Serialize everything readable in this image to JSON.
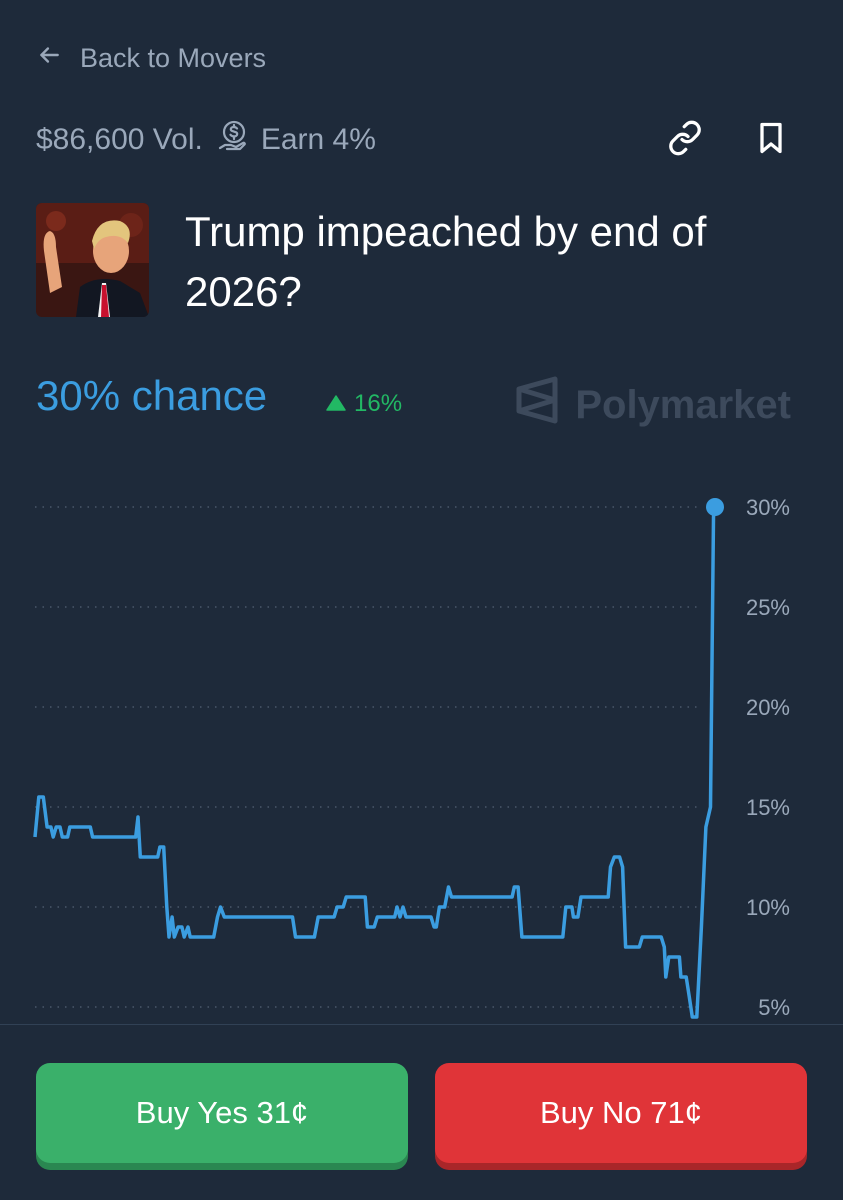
{
  "nav": {
    "back_label": "Back to Movers"
  },
  "market": {
    "volume": "$86,600 Vol.",
    "earn": "Earn 4%",
    "title": "Trump impeached by end of 2026?",
    "chance": "30% chance",
    "change": "16%",
    "brand": "Polymarket"
  },
  "icons": {
    "back": "arrow-left-icon",
    "earn": "coin-hand-icon",
    "link": "link-icon",
    "bookmark": "bookmark-icon",
    "change": "triangle-up-icon",
    "brand": "polymarket-logo-icon"
  },
  "colors": {
    "background": "#1e2a3a",
    "accent": "#3b9de0",
    "up": "#22b864",
    "yes": "#3ab06a",
    "no": "#e03438"
  },
  "actions": {
    "buy_yes": "Buy Yes 31¢",
    "buy_no": "Buy No 71¢"
  },
  "chart_data": {
    "type": "line",
    "yticks": [
      "30%",
      "25%",
      "20%",
      "15%",
      "10%",
      "5%"
    ],
    "ylim": [
      4.5,
      31
    ],
    "xlim": [
      0,
      100
    ],
    "grid": true,
    "series": [
      {
        "values": [
          [
            0,
            13.5
          ],
          [
            0.5,
            15.5
          ],
          [
            1.1,
            15.5
          ],
          [
            1.6,
            14
          ],
          [
            2.1,
            14
          ],
          [
            2.4,
            13.5
          ],
          [
            2.8,
            14
          ],
          [
            3.3,
            14
          ],
          [
            3.6,
            13.5
          ],
          [
            4.3,
            13.5
          ],
          [
            4.6,
            14
          ],
          [
            7.3,
            14
          ],
          [
            7.6,
            13.5
          ],
          [
            13.3,
            13.5
          ],
          [
            13.6,
            14.5
          ],
          [
            13.9,
            12.5
          ],
          [
            16.2,
            12.5
          ],
          [
            16.5,
            13
          ],
          [
            17,
            13
          ],
          [
            17.4,
            10
          ],
          [
            17.7,
            8.5
          ],
          [
            18.1,
            9.5
          ],
          [
            18.4,
            8.5
          ],
          [
            18.9,
            9
          ],
          [
            19.4,
            9
          ],
          [
            19.7,
            8.5
          ],
          [
            20.2,
            9
          ],
          [
            20.5,
            8.5
          ],
          [
            23.6,
            8.5
          ],
          [
            24.1,
            9.5
          ],
          [
            24.5,
            10
          ],
          [
            25,
            9.5
          ],
          [
            34,
            9.5
          ],
          [
            34.4,
            8.5
          ],
          [
            36.9,
            8.5
          ],
          [
            37.4,
            9.5
          ],
          [
            39.5,
            9.5
          ],
          [
            39.9,
            10
          ],
          [
            40.7,
            10
          ],
          [
            41.1,
            10.5
          ],
          [
            43.6,
            10.5
          ],
          [
            43.9,
            9
          ],
          [
            44.8,
            9
          ],
          [
            45.2,
            9.5
          ],
          [
            47.5,
            9.5
          ],
          [
            47.8,
            10
          ],
          [
            48.2,
            9.5
          ],
          [
            48.6,
            10
          ],
          [
            49,
            9.5
          ],
          [
            52.3,
            9.5
          ],
          [
            52.7,
            9
          ],
          [
            53,
            9
          ],
          [
            53.4,
            10
          ],
          [
            54.1,
            10
          ],
          [
            54.6,
            11
          ],
          [
            55,
            10.5
          ],
          [
            63,
            10.5
          ],
          [
            63.3,
            11
          ],
          [
            63.8,
            11
          ],
          [
            64.3,
            8.5
          ],
          [
            69.7,
            8.5
          ],
          [
            70.1,
            10
          ],
          [
            70.9,
            10
          ],
          [
            71.1,
            9.5
          ],
          [
            71.7,
            9.5
          ],
          [
            72.1,
            10.5
          ],
          [
            75.7,
            10.5
          ],
          [
            76,
            12
          ],
          [
            76.5,
            12.5
          ],
          [
            77.2,
            12.5
          ],
          [
            77.6,
            12
          ],
          [
            78,
            8
          ],
          [
            79.8,
            8
          ],
          [
            80.2,
            8.5
          ],
          [
            82.7,
            8.5
          ],
          [
            83.1,
            8
          ],
          [
            83.3,
            6.5
          ],
          [
            83.7,
            7.5
          ],
          [
            85.1,
            7.5
          ],
          [
            85.3,
            6.5
          ],
          [
            86,
            6.5
          ],
          [
            86.4,
            5.5
          ],
          [
            86.8,
            4.5
          ],
          [
            87.4,
            4.5
          ],
          [
            88,
            9
          ],
          [
            88.6,
            14
          ],
          [
            89.2,
            15
          ],
          [
            89.6,
            29.5
          ],
          [
            89.8,
            30
          ]
        ]
      }
    ],
    "last_point": [
      89.8,
      30
    ]
  }
}
